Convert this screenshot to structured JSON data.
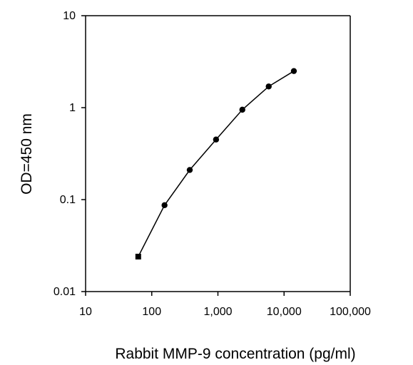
{
  "chart_data": {
    "type": "line",
    "xlabel": "Rabbit MMP-9 concentration (pg/ml)",
    "ylabel": "OD=450 nm",
    "x_scale": "log",
    "y_scale": "log",
    "xlim": [
      10,
      100000
    ],
    "ylim": [
      0.01,
      10
    ],
    "x_ticks": [
      {
        "value": 10,
        "label": "10"
      },
      {
        "value": 100,
        "label": "100"
      },
      {
        "value": 1000,
        "label": "1,000"
      },
      {
        "value": 10000,
        "label": "10,000"
      },
      {
        "value": 100000,
        "label": "100,000"
      }
    ],
    "y_ticks": [
      {
        "value": 0.01,
        "label": "0.01"
      },
      {
        "value": 0.1,
        "label": "0.1"
      },
      {
        "value": 1,
        "label": "1"
      },
      {
        "value": 10,
        "label": "10"
      }
    ],
    "grid": false,
    "legend": "none",
    "series": [
      {
        "x": [
          62.5,
          156,
          375,
          937,
          2340,
          5860,
          14060
        ],
        "y": [
          0.024,
          0.087,
          0.21,
          0.45,
          0.95,
          1.7,
          2.5
        ]
      }
    ],
    "colors": {
      "line": "#000000",
      "marker": "#000000",
      "axis": "#000000"
    }
  }
}
